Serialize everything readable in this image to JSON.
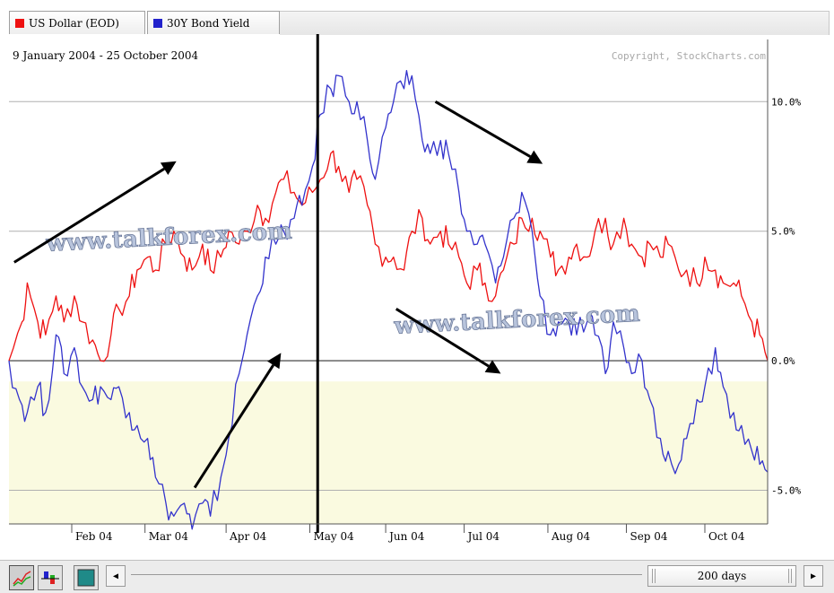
{
  "tabs": [
    {
      "label": "US Dollar (EOD)",
      "color": "#ee1111"
    },
    {
      "label": "30Y Bond Yield",
      "color": "#2222cc"
    }
  ],
  "date_range": "9 January 2004 - 25 October 2004",
  "copyright": "Copyright, StockCharts.com",
  "watermark": "www.talkforex.com",
  "period_label": "200 days",
  "colors": {
    "us_dollar": "#ee1111",
    "bond_yield": "#3333cc",
    "negative_fill": "#fafae0",
    "gridline": "#b0b0b0",
    "zero_line": "#333333"
  },
  "chart_data": {
    "type": "line",
    "title": "9 January 2004 - 25 October 2004",
    "ylim": [
      -6.3,
      12.4
    ],
    "y_ticks": [
      10,
      5,
      0,
      -5
    ],
    "y_tick_labels": [
      "10.0%",
      "5.0%",
      "0.0%",
      "-5.0%"
    ],
    "x_ticks": [
      {
        "date": "2004-02-02",
        "label": "Feb 04"
      },
      {
        "date": "2004-03-01",
        "label": "Mar 04"
      },
      {
        "date": "2004-04-01",
        "label": "Apr 04"
      },
      {
        "date": "2004-05-03",
        "label": "May 04"
      },
      {
        "date": "2004-06-01",
        "label": "Jun 04"
      },
      {
        "date": "2004-07-01",
        "label": "Jul 04"
      },
      {
        "date": "2004-08-02",
        "label": "Aug 04"
      },
      {
        "date": "2004-09-01",
        "label": "Sep 04"
      },
      {
        "date": "2004-10-01",
        "label": "Oct 04"
      }
    ],
    "x_range": [
      "2004-01-09",
      "2004-10-25"
    ],
    "grid": true,
    "negative_region_shaded": true,
    "series": [
      {
        "name": "US Dollar (EOD)",
        "color": "#ee1111",
        "points": [
          [
            "2004-01-09",
            0.0
          ],
          [
            "2004-01-14",
            1.5
          ],
          [
            "2004-01-16",
            3.0
          ],
          [
            "2004-01-20",
            1.5
          ],
          [
            "2004-01-23",
            1.0
          ],
          [
            "2004-01-27",
            2.5
          ],
          [
            "2004-01-30",
            1.5
          ],
          [
            "2004-02-03",
            2.5
          ],
          [
            "2004-02-06",
            1.5
          ],
          [
            "2004-02-10",
            0.8
          ],
          [
            "2004-02-13",
            0.0
          ],
          [
            "2004-02-17",
            1.0
          ],
          [
            "2004-02-20",
            2.0
          ],
          [
            "2004-02-24",
            2.5
          ],
          [
            "2004-02-27",
            3.5
          ],
          [
            "2004-03-02",
            4.0
          ],
          [
            "2004-03-05",
            3.5
          ],
          [
            "2004-03-09",
            4.5
          ],
          [
            "2004-03-12",
            5.0
          ],
          [
            "2004-03-16",
            4.0
          ],
          [
            "2004-03-19",
            3.5
          ],
          [
            "2004-03-23",
            4.5
          ],
          [
            "2004-03-26",
            3.5
          ],
          [
            "2004-03-30",
            4.0
          ],
          [
            "2004-04-02",
            5.0
          ],
          [
            "2004-04-06",
            4.5
          ],
          [
            "2004-04-09",
            5.0
          ],
          [
            "2004-04-13",
            6.0
          ],
          [
            "2004-04-16",
            5.5
          ],
          [
            "2004-04-20",
            6.5
          ],
          [
            "2004-04-23",
            7.0
          ],
          [
            "2004-04-27",
            6.5
          ],
          [
            "2004-04-30",
            6.0
          ],
          [
            "2004-05-04",
            6.5
          ],
          [
            "2004-05-07",
            7.0
          ],
          [
            "2004-05-11",
            8.0
          ],
          [
            "2004-05-14",
            7.5
          ],
          [
            "2004-05-18",
            6.5
          ],
          [
            "2004-05-21",
            7.0
          ],
          [
            "2004-05-25",
            6.0
          ],
          [
            "2004-05-28",
            4.5
          ],
          [
            "2004-06-01",
            4.0
          ],
          [
            "2004-06-04",
            4.0
          ],
          [
            "2004-06-08",
            3.5
          ],
          [
            "2004-06-11",
            5.0
          ],
          [
            "2004-06-15",
            5.5
          ],
          [
            "2004-06-18",
            4.5
          ],
          [
            "2004-06-22",
            5.0
          ],
          [
            "2004-06-25",
            4.5
          ],
          [
            "2004-06-29",
            4.0
          ],
          [
            "2004-07-02",
            3.0
          ],
          [
            "2004-07-06",
            3.5
          ],
          [
            "2004-07-09",
            3.0
          ],
          [
            "2004-07-13",
            2.5
          ],
          [
            "2004-07-16",
            3.5
          ],
          [
            "2004-07-20",
            4.5
          ],
          [
            "2004-07-23",
            5.5
          ],
          [
            "2004-07-27",
            5.5
          ],
          [
            "2004-07-30",
            5.0
          ],
          [
            "2004-08-03",
            4.0
          ],
          [
            "2004-08-06",
            3.5
          ],
          [
            "2004-08-10",
            4.0
          ],
          [
            "2004-08-13",
            4.5
          ],
          [
            "2004-08-17",
            4.0
          ],
          [
            "2004-08-20",
            5.0
          ],
          [
            "2004-08-24",
            5.5
          ],
          [
            "2004-08-27",
            4.5
          ],
          [
            "2004-08-31",
            5.5
          ],
          [
            "2004-09-03",
            4.5
          ],
          [
            "2004-09-07",
            4.0
          ],
          [
            "2004-09-10",
            4.5
          ],
          [
            "2004-09-14",
            4.0
          ],
          [
            "2004-09-17",
            4.5
          ],
          [
            "2004-09-21",
            3.5
          ],
          [
            "2004-09-24",
            3.5
          ],
          [
            "2004-09-28",
            3.0
          ],
          [
            "2004-10-01",
            4.0
          ],
          [
            "2004-10-05",
            3.5
          ],
          [
            "2004-10-08",
            3.0
          ],
          [
            "2004-10-12",
            3.0
          ],
          [
            "2004-10-15",
            2.5
          ],
          [
            "2004-10-19",
            1.5
          ],
          [
            "2004-10-22",
            1.0
          ],
          [
            "2004-10-25",
            0.0
          ]
        ]
      },
      {
        "name": "30Y Bond Yield",
        "color": "#3333cc",
        "points": [
          [
            "2004-01-09",
            0.0
          ],
          [
            "2004-01-13",
            -1.5
          ],
          [
            "2004-01-16",
            -2.0
          ],
          [
            "2004-01-20",
            -1.0
          ],
          [
            "2004-01-23",
            -2.0
          ],
          [
            "2004-01-27",
            1.0
          ],
          [
            "2004-01-30",
            -0.5
          ],
          [
            "2004-02-03",
            0.5
          ],
          [
            "2004-02-06",
            -1.0
          ],
          [
            "2004-02-10",
            -1.5
          ],
          [
            "2004-02-13",
            -1.0
          ],
          [
            "2004-02-17",
            -1.5
          ],
          [
            "2004-02-20",
            -1.0
          ],
          [
            "2004-02-24",
            -2.0
          ],
          [
            "2004-02-27",
            -2.5
          ],
          [
            "2004-03-02",
            -3.0
          ],
          [
            "2004-03-05",
            -4.5
          ],
          [
            "2004-03-09",
            -5.5
          ],
          [
            "2004-03-12",
            -6.0
          ],
          [
            "2004-03-16",
            -5.5
          ],
          [
            "2004-03-19",
            -6.5
          ],
          [
            "2004-03-23",
            -5.5
          ],
          [
            "2004-03-26",
            -6.0
          ],
          [
            "2004-03-30",
            -4.5
          ],
          [
            "2004-04-02",
            -3.0
          ],
          [
            "2004-04-06",
            -0.5
          ],
          [
            "2004-04-09",
            1.0
          ],
          [
            "2004-04-13",
            2.5
          ],
          [
            "2004-04-16",
            4.0
          ],
          [
            "2004-04-20",
            4.5
          ],
          [
            "2004-04-23",
            5.0
          ],
          [
            "2004-04-27",
            5.5
          ],
          [
            "2004-04-30",
            6.0
          ],
          [
            "2004-05-04",
            7.5
          ],
          [
            "2004-05-07",
            9.5
          ],
          [
            "2004-05-11",
            10.5
          ],
          [
            "2004-05-14",
            11.0
          ],
          [
            "2004-05-18",
            10.0
          ],
          [
            "2004-05-21",
            10.0
          ],
          [
            "2004-05-25",
            8.5
          ],
          [
            "2004-05-28",
            7.0
          ],
          [
            "2004-06-01",
            9.0
          ],
          [
            "2004-06-04",
            10.0
          ],
          [
            "2004-06-08",
            10.5
          ],
          [
            "2004-06-11",
            11.0
          ],
          [
            "2004-06-15",
            8.5
          ],
          [
            "2004-06-18",
            8.0
          ],
          [
            "2004-06-22",
            8.5
          ],
          [
            "2004-06-25",
            8.0
          ],
          [
            "2004-06-29",
            6.5
          ],
          [
            "2004-07-02",
            5.0
          ],
          [
            "2004-07-06",
            4.5
          ],
          [
            "2004-07-09",
            4.5
          ],
          [
            "2004-07-13",
            3.0
          ],
          [
            "2004-07-16",
            4.0
          ],
          [
            "2004-07-20",
            5.5
          ],
          [
            "2004-07-23",
            6.5
          ],
          [
            "2004-07-27",
            5.0
          ],
          [
            "2004-07-30",
            2.5
          ],
          [
            "2004-08-03",
            1.0
          ],
          [
            "2004-08-06",
            1.5
          ],
          [
            "2004-08-10",
            1.5
          ],
          [
            "2004-08-13",
            1.0
          ],
          [
            "2004-08-17",
            1.5
          ],
          [
            "2004-08-20",
            1.0
          ],
          [
            "2004-08-24",
            -0.5
          ],
          [
            "2004-08-27",
            1.5
          ],
          [
            "2004-08-31",
            0.5
          ],
          [
            "2004-09-03",
            -0.5
          ],
          [
            "2004-09-07",
            0.0
          ],
          [
            "2004-09-10",
            -1.5
          ],
          [
            "2004-09-14",
            -3.0
          ],
          [
            "2004-09-17",
            -3.5
          ],
          [
            "2004-09-21",
            -4.0
          ],
          [
            "2004-09-24",
            -3.0
          ],
          [
            "2004-09-28",
            -1.5
          ],
          [
            "2004-10-01",
            -1.0
          ],
          [
            "2004-10-05",
            0.5
          ],
          [
            "2004-10-08",
            -1.0
          ],
          [
            "2004-10-12",
            -2.0
          ],
          [
            "2004-10-15",
            -2.5
          ],
          [
            "2004-10-19",
            -3.5
          ],
          [
            "2004-10-22",
            -4.0
          ],
          [
            "2004-10-25",
            -4.3
          ]
        ]
      }
    ],
    "annotations": {
      "vertical_marker_date": "2004-05-06",
      "arrows": [
        {
          "from": [
            "2004-01-11",
            3.8
          ],
          "to": [
            "2004-03-13",
            7.7
          ],
          "direction": "up"
        },
        {
          "from": [
            "2004-03-20",
            -4.9
          ],
          "to": [
            "2004-04-22",
            0.3
          ],
          "direction": "up"
        },
        {
          "from": [
            "2004-06-20",
            10.0
          ],
          "to": [
            "2004-07-31",
            7.6
          ],
          "direction": "down"
        },
        {
          "from": [
            "2004-06-05",
            2.0
          ],
          "to": [
            "2004-07-15",
            -0.5
          ],
          "direction": "down"
        }
      ]
    }
  }
}
